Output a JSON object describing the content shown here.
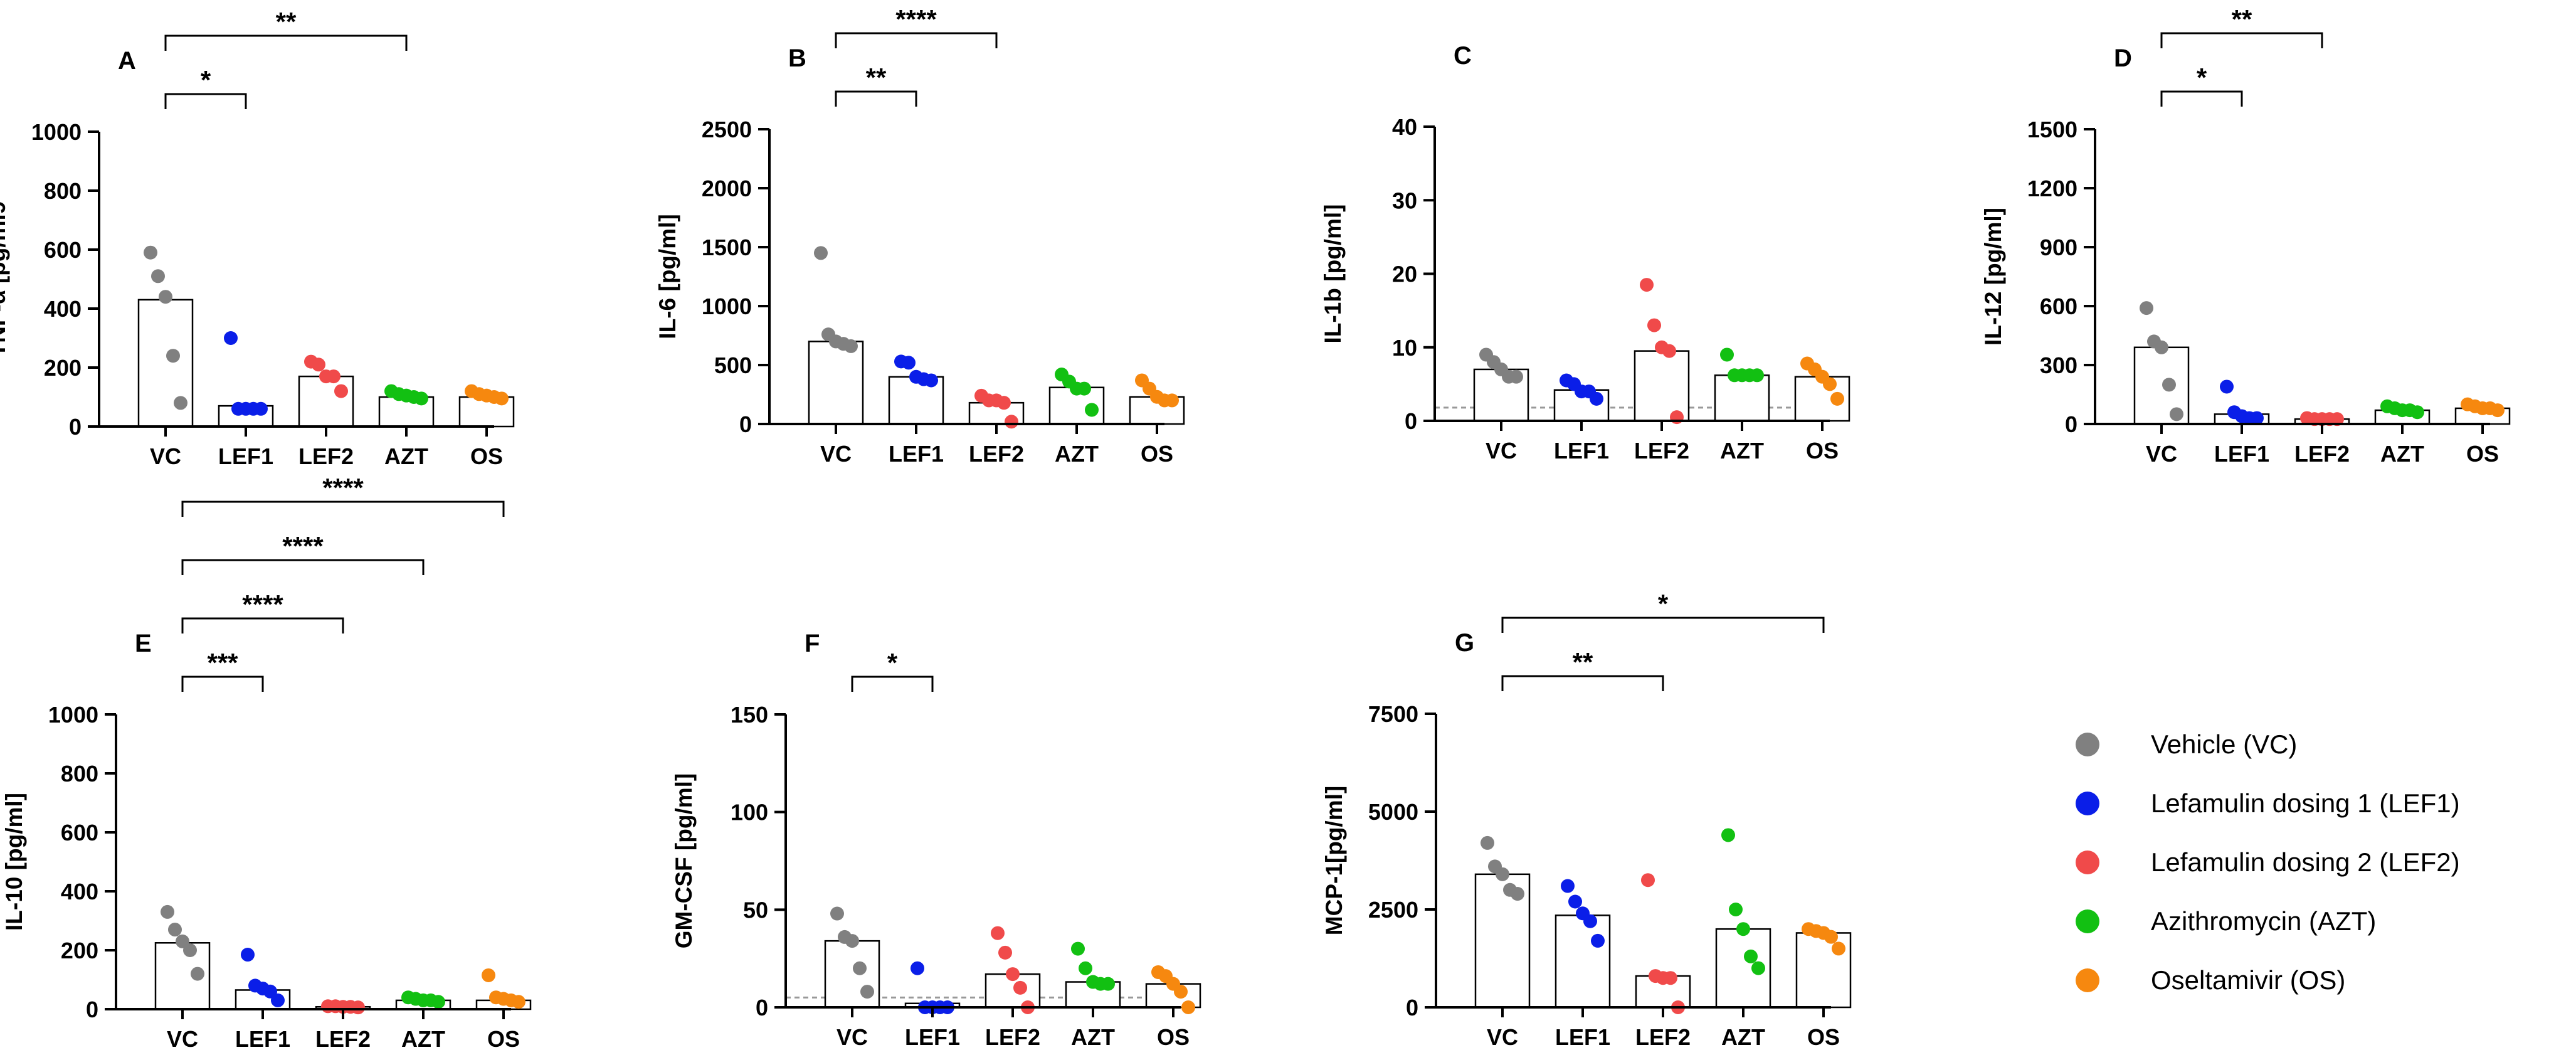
{
  "colors": {
    "VC": "#808080",
    "LEF1": "#0a1ee8",
    "LEF2": "#f04a4a",
    "AZT": "#12c012",
    "OS": "#f6880f"
  },
  "legend": [
    {
      "group": "VC",
      "label": "Vehicle (VC)"
    },
    {
      "group": "LEF1",
      "label": "Lefamulin dosing 1 (LEF1)"
    },
    {
      "group": "LEF2",
      "label": "Lefamulin dosing 2 (LEF2)"
    },
    {
      "group": "AZT",
      "label": "Azithromycin (AZT)"
    },
    {
      "group": "OS",
      "label": "Oseltamivir (OS)"
    }
  ],
  "chart_data": [
    {
      "type": "scatter",
      "panel": "A",
      "ylabel": "TNF-α [pg/ml9",
      "ylim": [
        0,
        1000
      ],
      "yticks": [
        0,
        200,
        400,
        600,
        800,
        1000
      ],
      "categories": [
        "VC",
        "LEF1",
        "LEF2",
        "AZT",
        "OS"
      ],
      "bars": [
        430,
        70,
        170,
        100,
        100
      ],
      "points": [
        [
          590,
          510,
          440,
          240,
          80
        ],
        [
          300,
          60,
          60,
          60,
          60
        ],
        [
          220,
          210,
          170,
          170,
          120
        ],
        [
          120,
          110,
          105,
          100,
          95
        ],
        [
          120,
          110,
          105,
          100,
          95
        ]
      ],
      "sig": [
        {
          "from": 0,
          "to": 1,
          "label": "*"
        },
        {
          "from": 0,
          "to": 3,
          "label": "**"
        },
        {
          "from": 0,
          "to": 4,
          "label": "**"
        }
      ]
    },
    {
      "type": "scatter",
      "panel": "B",
      "ylabel": "IL-6 [pg/ml]",
      "ylim": [
        0,
        2500
      ],
      "yticks": [
        0,
        500,
        1000,
        1500,
        2000,
        2500
      ],
      "categories": [
        "VC",
        "LEF1",
        "LEF2",
        "AZT",
        "OS"
      ],
      "bars": [
        700,
        400,
        180,
        310,
        230
      ],
      "points": [
        [
          1450,
          760,
          700,
          680,
          660
        ],
        [
          530,
          520,
          400,
          380,
          370
        ],
        [
          240,
          200,
          200,
          180,
          20
        ],
        [
          420,
          360,
          300,
          300,
          120
        ],
        [
          370,
          300,
          230,
          200,
          200
        ]
      ],
      "sig": [
        {
          "from": 0,
          "to": 1,
          "label": "**"
        },
        {
          "from": 0,
          "to": 2,
          "label": "****"
        },
        {
          "from": 0,
          "to": 3,
          "label": "***"
        },
        {
          "from": 0,
          "to": 4,
          "label": "***"
        }
      ]
    },
    {
      "type": "scatter",
      "panel": "C",
      "ylabel": "IL-1b [pg/ml]",
      "ylim": [
        0,
        40
      ],
      "yticks": [
        0,
        10,
        20,
        30,
        40
      ],
      "categories": [
        "VC",
        "LEF1",
        "LEF2",
        "AZT",
        "OS"
      ],
      "bars": [
        7,
        4.2,
        9.5,
        6.2,
        6.0
      ],
      "points": [
        [
          9,
          8,
          7,
          6,
          6
        ],
        [
          5.5,
          5,
          4,
          4,
          3
        ],
        [
          18.5,
          13,
          10,
          9.5,
          0.5
        ],
        [
          9,
          6.2,
          6.2,
          6.2,
          6.2
        ],
        [
          7.8,
          7,
          6,
          5,
          3
        ]
      ],
      "baseline": 1.8,
      "sig": []
    },
    {
      "type": "scatter",
      "panel": "D",
      "ylabel": "IL-12 [pg/ml]",
      "ylim": [
        0,
        1500
      ],
      "yticks": [
        0,
        300,
        600,
        900,
        1200,
        1500
      ],
      "categories": [
        "VC",
        "LEF1",
        "LEF2",
        "AZT",
        "OS"
      ],
      "bars": [
        390,
        50,
        25,
        70,
        80
      ],
      "points": [
        [
          590,
          420,
          390,
          200,
          50
        ],
        [
          190,
          60,
          40,
          30,
          30
        ],
        [
          30,
          25,
          25,
          25,
          25
        ],
        [
          90,
          80,
          70,
          70,
          60
        ],
        [
          100,
          90,
          80,
          80,
          70
        ]
      ],
      "sig": [
        {
          "from": 0,
          "to": 1,
          "label": "*"
        },
        {
          "from": 0,
          "to": 2,
          "label": "**"
        },
        {
          "from": 0,
          "to": 3,
          "label": "**"
        },
        {
          "from": 0,
          "to": 4,
          "label": "*"
        }
      ]
    },
    {
      "type": "scatter",
      "panel": "E",
      "ylabel": "IL-10 [pg/ml]",
      "ylim": [
        0,
        1000
      ],
      "yticks": [
        0,
        200,
        400,
        600,
        800,
        1000
      ],
      "categories": [
        "VC",
        "LEF1",
        "LEF2",
        "AZT",
        "OS"
      ],
      "bars": [
        225,
        65,
        8,
        30,
        30
      ],
      "points": [
        [
          330,
          270,
          230,
          200,
          120
        ],
        [
          185,
          80,
          70,
          60,
          30
        ],
        [
          10,
          10,
          8,
          8,
          6
        ],
        [
          40,
          35,
          30,
          30,
          25
        ],
        [
          115,
          40,
          35,
          30,
          25
        ]
      ],
      "sig": [
        {
          "from": 0,
          "to": 1,
          "label": "***"
        },
        {
          "from": 0,
          "to": 2,
          "label": "****"
        },
        {
          "from": 0,
          "to": 3,
          "label": "****"
        },
        {
          "from": 0,
          "to": 4,
          "label": "****"
        }
      ]
    },
    {
      "type": "scatter",
      "panel": "F",
      "ylabel": "GM-CSF [pg/ml]",
      "ylim": [
        0,
        150
      ],
      "yticks": [
        0,
        50,
        100,
        150
      ],
      "categories": [
        "VC",
        "LEF1",
        "LEF2",
        "AZT",
        "OS"
      ],
      "bars": [
        34,
        2,
        17,
        13,
        12
      ],
      "points": [
        [
          48,
          36,
          34,
          20,
          8
        ],
        [
          20,
          0,
          0,
          0,
          0
        ],
        [
          38,
          28,
          17,
          10,
          0
        ],
        [
          30,
          20,
          13,
          12,
          12
        ],
        [
          18,
          16,
          12,
          8,
          0
        ]
      ],
      "baseline": 5,
      "sig": [
        {
          "from": 0,
          "to": 1,
          "label": "*"
        }
      ]
    },
    {
      "type": "scatter",
      "panel": "G",
      "ylabel": "MCP-1[pg/ml]",
      "ylim": [
        0,
        7500
      ],
      "yticks": [
        0,
        2500,
        5000,
        7500
      ],
      "categories": [
        "VC",
        "LEF1",
        "LEF2",
        "AZT",
        "OS"
      ],
      "bars": [
        3400,
        2350,
        800,
        2000,
        1900
      ],
      "points": [
        [
          4200,
          3600,
          3400,
          3000,
          2900
        ],
        [
          3100,
          2700,
          2400,
          2200,
          1700
        ],
        [
          3250,
          800,
          750,
          750,
          0
        ],
        [
          4400,
          2500,
          2000,
          1300,
          1000
        ],
        [
          2000,
          1950,
          1900,
          1800,
          1500
        ]
      ],
      "sig": [
        {
          "from": 0,
          "to": 2,
          "label": "**"
        },
        {
          "from": 0,
          "to": 4,
          "label": "*"
        }
      ]
    }
  ]
}
